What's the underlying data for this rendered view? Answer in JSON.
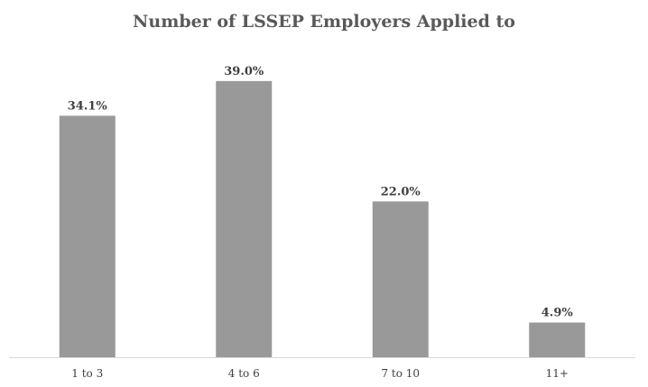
{
  "chart_data": {
    "type": "bar",
    "title": "Number of LSSEP Employers Applied to",
    "categories": [
      "1 to 3",
      "4 to 6",
      "7  to 10",
      "11+"
    ],
    "values": [
      34.1,
      39.0,
      22.0,
      4.9
    ],
    "value_labels": [
      "34.1%",
      "39.0%",
      "22.0%",
      "4.9%"
    ],
    "xlabel": "",
    "ylabel": "",
    "ylim": [
      0,
      45
    ],
    "grid": false,
    "legend": "none",
    "bar_color": "#999999",
    "axis_color": "#d9d9d9"
  }
}
